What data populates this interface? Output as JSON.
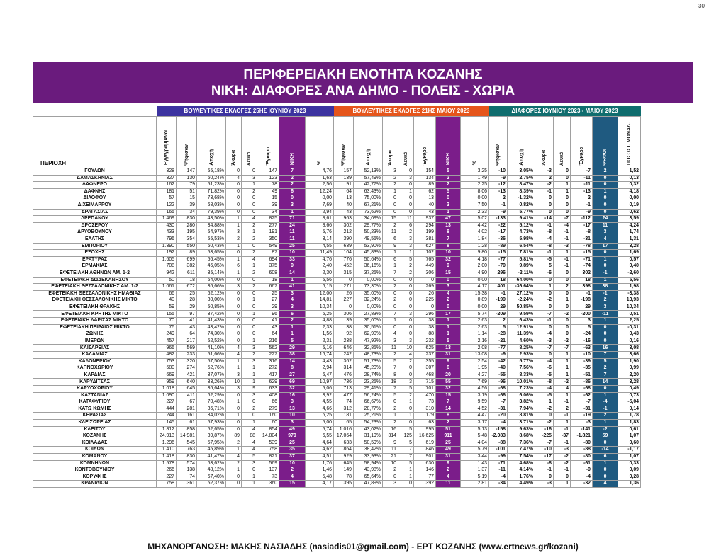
{
  "page": {
    "number": "30",
    "title1": "ΠΕΡΙΦΕΡΕΙΑΚΗ ΕΝΟΤΗΤΑ ΚΟΖΑΝΗΣ",
    "title2": "ΝΙΚΗ: ΔΙΑΦΟΡΕΣ ΑΝΑ ΔΗΜΟ - ΠΟΛΕΙΣ - ΧΩΡΙΑ",
    "footer": "ΜΗΧΑΝΟΡΓΑΝΩΣΗ: ΜΑΚΗΣ ΝΑΣΙΑΔΗΣ (nasiadis01@gmail.com) - ΕΡΤ ΚΟΖΑΝΗΣ (www.ertnews.gr/kozani)"
  },
  "colors": {
    "june": "#3c33a0",
    "may": "#e5551b",
    "diff": "#0f6d6e",
    "party": "#7b1d8a",
    "votes_diff": "#1f5a80"
  },
  "groups": [
    {
      "label": "ΒΟΥΛΕΥΤΙΚΕΣ ΕΚΛΟΓΕΣ 25ΗΣ ΙΟΥΝΙΟΥ 2023"
    },
    {
      "label": "ΒΟΥΛΕΥΤΙΚΕΣ ΕΚΛΟΓΕΣ 21ΗΣ ΜΑΪΟΥ 2023"
    },
    {
      "label": "ΔΙΑΦΟΡΕΣ ΙΟΥΝΙΟΥ 2023 - ΜΑΪΟΥ 2023"
    }
  ],
  "headers": [
    "ΠΕΡΙΟΧΗ",
    "Εγγεγραμμένοι",
    "Ψήφισαν",
    "Αποχή",
    "Άκυρα",
    "Λευκά",
    "Έγκυρα",
    "ΝΙΚΗ",
    "%",
    "Ψήφισαν",
    "Αποχή",
    "Άκυρα",
    "Λευκά",
    "Έγκυρα",
    "ΝΙΚΗ",
    "%",
    "Ψήφισαν",
    "Αποχή",
    "Άκυρα",
    "Λευκά",
    "Έγκυρα",
    "ΨΗΦΟΙ",
    "ΠΟΣΟΣΤ. ΜΟΝΑΔ."
  ],
  "rows": [
    [
      "ΓΟΥΛΩΝ",
      "328",
      "147",
      "55,18%",
      "0",
      "0",
      "147",
      "7",
      "4,76",
      "157",
      "52,13%",
      "3",
      "0",
      "154",
      "5",
      "3,25",
      "-10",
      "3,05%",
      "-3",
      "0",
      "-7",
      "2",
      "1,52"
    ],
    [
      "ΔΑΜΑΣΚΗΝΙΑΣ",
      "327",
      "130",
      "60,24%",
      "4",
      "3",
      "123",
      "2",
      "1,63",
      "139",
      "57,49%",
      "2",
      "3",
      "134",
      "2",
      "1,49",
      "-9",
      "2,75%",
      "2",
      "0",
      "-11",
      "0",
      "0,13"
    ],
    [
      "ΔΑΦΝΕΡΟ",
      "162",
      "79",
      "51,23%",
      "0",
      "1",
      "78",
      "2",
      "2,56",
      "91",
      "42,77%",
      "2",
      "0",
      "89",
      "2",
      "2,25",
      "-12",
      "8,47%",
      "-2",
      "1",
      "-11",
      "0",
      "0,32"
    ],
    [
      "ΔΑΦΝΗΣ",
      "181",
      "51",
      "71,82%",
      "0",
      "2",
      "49",
      "6",
      "12,24",
      "64",
      "63,43%",
      "1",
      "1",
      "62",
      "5",
      "8,06",
      "-13",
      "8,39%",
      "-1",
      "1",
      "-13",
      "1",
      "4,18"
    ],
    [
      "ΔΙΛΟΦΟΥ",
      "57",
      "15",
      "73,68%",
      "0",
      "0",
      "15",
      "0",
      "0,00",
      "13",
      "75,00%",
      "0",
      "0",
      "13",
      "0",
      "0,00",
      "2",
      "-1,32%",
      "0",
      "0",
      "2",
      "0",
      "0,00"
    ],
    [
      "ΔΙΧΕΙΜΑΡΡΟΥ",
      "122",
      "39",
      "68,03%",
      "0",
      "0",
      "39",
      "3",
      "7,69",
      "40",
      "67,21%",
      "0",
      "0",
      "40",
      "3",
      "7,50",
      "-1",
      "0,82%",
      "0",
      "0",
      "-1",
      "0",
      "0,19"
    ],
    [
      "ΔΡΑΓΑΣΙΑΣ",
      "165",
      "34",
      "79,39%",
      "0",
      "0",
      "34",
      "1",
      "2,94",
      "43",
      "73,62%",
      "0",
      "0",
      "43",
      "1",
      "2,33",
      "-9",
      "5,77%",
      "0",
      "0",
      "-9",
      "0",
      "0,62"
    ],
    [
      "ΔΡΕΠΑΝΟΥ",
      "1.469",
      "830",
      "43,50%",
      "1",
      "4",
      "825",
      "71",
      "8,61",
      "963",
      "34,09%",
      "15",
      "11",
      "937",
      "47",
      "5,02",
      "-133",
      "9,41%",
      "-14",
      "-7",
      "-112",
      "24",
      "3,59"
    ],
    [
      "ΔΡΟΣΕΡΟΥ",
      "430",
      "280",
      "34,88%",
      "1",
      "2",
      "277",
      "24",
      "8,66",
      "302",
      "29,77%",
      "2",
      "6",
      "294",
      "13",
      "4,42",
      "-22",
      "5,12%",
      "-1",
      "-4",
      "-17",
      "11",
      "4,24"
    ],
    [
      "ΔΡΥΟΒΟΥΝΟΥ",
      "433",
      "195",
      "54,97%",
      "3",
      "1",
      "191",
      "11",
      "5,76",
      "212",
      "50,23%",
      "11",
      "2",
      "199",
      "8",
      "4,02",
      "-17",
      "4,73%",
      "-8",
      "-1",
      "-8",
      "3",
      "1,74"
    ],
    [
      "ΕΛΑΤΗΣ",
      "796",
      "354",
      "55,53%",
      "2",
      "2",
      "350",
      "11",
      "3,14",
      "390",
      "49,55%",
      "6",
      "3",
      "381",
      "7",
      "1,84",
      "-36",
      "5,98%",
      "-4",
      "-1",
      "-31",
      "4",
      "1,31"
    ],
    [
      "ΕΜΠΟΡΙΟΥ",
      "1.390",
      "550",
      "60,43%",
      "1",
      "0",
      "549",
      "25",
      "4,55",
      "639",
      "53,90%",
      "9",
      "3",
      "627",
      "8",
      "1,28",
      "-89",
      "6,54%",
      "-8",
      "-3",
      "-78",
      "17",
      "3,28"
    ],
    [
      "ΕΞΟΧΗΣ",
      "192",
      "89",
      "53,65%",
      "0",
      "2",
      "87",
      "10",
      "11,49",
      "104",
      "45,83%",
      "1",
      "1",
      "102",
      "10",
      "9,80",
      "-15",
      "7,81%",
      "-1",
      "1",
      "-15",
      "0",
      "1,69"
    ],
    [
      "ΕΡΑΤΥΡΑΣ",
      "1.605",
      "699",
      "56,45%",
      "1",
      "4",
      "694",
      "33",
      "4,76",
      "776",
      "50,64%",
      "6",
      "5",
      "765",
      "32",
      "4,18",
      "-77",
      "5,81%",
      "-5",
      "-1",
      "-71",
      "1",
      "0,57"
    ],
    [
      "ΕΡΜΑΚΙΑΣ",
      "708",
      "382",
      "46,05%",
      "6",
      "1",
      "375",
      "9",
      "2,40",
      "452",
      "36,16%",
      "1",
      "2",
      "449",
      "9",
      "2,00",
      "-70",
      "9,89%",
      "5",
      "-1",
      "-74",
      "0",
      "0,40"
    ],
    [
      "ΕΦΕΤΕΙΑΚΗ ΑΘΗΝΩΝ ΑΜ. 1-2",
      "942",
      "611",
      "35,14%",
      "1",
      "2",
      "608",
      "14",
      "2,30",
      "315",
      "37,25%",
      "7",
      "2",
      "306",
      "15",
      "4,90",
      "296",
      "-2,11%",
      "-6",
      "0",
      "302",
      "-1",
      "-2,60"
    ],
    [
      "ΕΦΕΤΕΙΑΚΗ ΔΩΔΕΚΑΝΗΣΟΥ",
      "50",
      "18",
      "64,00%",
      "0",
      "0",
      "18",
      "1",
      "5,56",
      "0",
      "0,00%",
      "0",
      "0",
      "0",
      "0",
      "0,00",
      "18",
      "64,00%",
      "0",
      "0",
      "18",
      "1",
      "5,56"
    ],
    [
      "ΕΦΕΤΕΙΑΚΗ ΘΕΣΣΑΛΟΝΙΚΗΣ ΑΜ. 1-2",
      "1.061",
      "672",
      "36,66%",
      "3",
      "2",
      "667",
      "41",
      "6,15",
      "271",
      "73,30%",
      "2",
      "0",
      "269",
      "3",
      "4,17",
      "401",
      "-36,64%",
      "1",
      "2",
      "398",
      "38",
      "1,98"
    ],
    [
      "ΕΦΕΤΕΙΑΚΗ ΘΕΣΣΑΛΟΝΙΚΗΣ ΗΜΑΘΙΑΣ",
      "66",
      "25",
      "62,12%",
      "0",
      "0",
      "25",
      "3",
      "12,00",
      "26",
      "35,00%",
      "0",
      "0",
      "26",
      "4",
      "15,38",
      "-1",
      "27,12%",
      "0",
      "0",
      "-1",
      "-1",
      "-3,38"
    ],
    [
      "ΕΦΕΤΕΙΑΚΗ ΘΕΣΣΑΛΟΝΙΚΗΣ ΜΙΚΤΟ",
      "40",
      "28",
      "30,00%",
      "0",
      "1",
      "27",
      "4",
      "14,81",
      "227",
      "32,24%",
      "2",
      "0",
      "225",
      "2",
      "0,89",
      "-199",
      "-2,24%",
      "-2",
      "1",
      "-198",
      "2",
      "13,93"
    ],
    [
      "ΕΦΕΤΕΙΑΚΗ ΘΡΑΚΗΣ",
      "59",
      "29",
      "50,85%",
      "0",
      "0",
      "29",
      "3",
      "10,34",
      "0",
      "0,00%",
      "0",
      "0",
      "0",
      "0",
      "0,00",
      "29",
      "50,85%",
      "0",
      "0",
      "29",
      "3",
      "10,34"
    ],
    [
      "ΕΦΕΤΕΙΑΚΗ ΚΡΗΤΗΣ ΜΙΚΤΟ",
      "155",
      "97",
      "37,42%",
      "0",
      "1",
      "96",
      "6",
      "6,25",
      "306",
      "27,83%",
      "7",
      "3",
      "296",
      "17",
      "5,74",
      "-209",
      "9,59%",
      "-7",
      "-2",
      "-200",
      "-11",
      "0,51"
    ],
    [
      "ΕΦΕΤΕΙΑΚΗ ΛΑΡΙΣΑΣ ΜΙΚΤΟ",
      "70",
      "41",
      "41,43%",
      "0",
      "0",
      "41",
      "2",
      "4,88",
      "39",
      "35,00%",
      "1",
      "0",
      "38",
      "1",
      "2,63",
      "2",
      "6,43%",
      "-1",
      "0",
      "3",
      "1",
      "2,25"
    ],
    [
      "ΕΦΕΤΕΙΑΚΗ ΠΕΙΡΑΙΩΣ ΜΙΚΤΟ",
      "76",
      "43",
      "43,42%",
      "0",
      "0",
      "43",
      "1",
      "2,33",
      "38",
      "30,51%",
      "0",
      "0",
      "38",
      "1",
      "2,63",
      "5",
      "12,91%",
      "0",
      "0",
      "5",
      "0",
      "-0,31"
    ],
    [
      "ΖΩΝΗΣ",
      "249",
      "64",
      "74,30%",
      "0",
      "0",
      "64",
      "1",
      "1,56",
      "92",
      "62,90%",
      "4",
      "0",
      "88",
      "1",
      "1,14",
      "-28",
      "11,39%",
      "-4",
      "0",
      "-24",
      "0",
      "0,43"
    ],
    [
      "ΙΜΕΡΩΝ",
      "457",
      "217",
      "52,52%",
      "0",
      "1",
      "216",
      "5",
      "2,31",
      "238",
      "47,92%",
      "3",
      "3",
      "232",
      "5",
      "2,16",
      "-21",
      "4,60%",
      "-3",
      "-2",
      "-16",
      "0",
      "0,16"
    ],
    [
      "ΚΑΙΣΑΡΕΙΑΣ",
      "966",
      "569",
      "41,10%",
      "4",
      "3",
      "562",
      "29",
      "5,16",
      "646",
      "32,85%",
      "11",
      "10",
      "625",
      "13",
      "2,08",
      "-77",
      "8,25%",
      "-7",
      "-7",
      "-63",
      "16",
      "3,08"
    ],
    [
      "ΚΑΛΑΜΙΑΣ",
      "482",
      "233",
      "51,66%",
      "4",
      "2",
      "227",
      "38",
      "16,74",
      "242",
      "48,73%",
      "2",
      "4",
      "237",
      "31",
      "13,08",
      "-9",
      "2,93%",
      "0",
      "1",
      "-10",
      "7",
      "3,66"
    ],
    [
      "ΚΑΛΟΝΕΡΙΟΥ",
      "753",
      "320",
      "57,50%",
      "1",
      "3",
      "316",
      "14",
      "4,43",
      "362",
      "51,73%",
      "5",
      "2",
      "355",
      "9",
      "2,54",
      "-42",
      "5,77%",
      "-4",
      "1",
      "-39",
      "5",
      "1,90"
    ],
    [
      "ΚΑΠΝΟΧΩΡΙΟΥ",
      "580",
      "274",
      "52,76%",
      "1",
      "1",
      "272",
      "8",
      "2,94",
      "314",
      "45,20%",
      "7",
      "0",
      "307",
      "6",
      "1,95",
      "-40",
      "7,56%",
      "-6",
      "1",
      "-35",
      "2",
      "0,99"
    ],
    [
      "ΚΑΡΔΙΑΣ",
      "669",
      "421",
      "37,07%",
      "3",
      "1",
      "417",
      "27",
      "6,47",
      "476",
      "28,74%",
      "8",
      "0",
      "468",
      "20",
      "4,27",
      "-55",
      "8,33%",
      "-5",
      "1",
      "-51",
      "7",
      "2,20"
    ],
    [
      "ΚΑΡΥΔΙΤΣΑΣ",
      "959",
      "640",
      "33,26%",
      "10",
      "1",
      "629",
      "69",
      "10,97",
      "736",
      "23,25%",
      "18",
      "3",
      "715",
      "55",
      "7,69",
      "-96",
      "10,01%",
      "-8",
      "-2",
      "-86",
      "14",
      "3,28"
    ],
    [
      "ΚΑΡΥΟΧΩΡΙΟΥ",
      "1.018",
      "645",
      "36,64%",
      "3",
      "9",
      "633",
      "32",
      "5,06",
      "713",
      "29,41%",
      "7",
      "5",
      "701",
      "32",
      "4,56",
      "-68",
      "7,23%",
      "-4",
      "4",
      "-68",
      "0",
      "0,49"
    ],
    [
      "ΚΑΣΤΑΝΙΑΣ",
      "1.090",
      "411",
      "62,29%",
      "0",
      "3",
      "408",
      "16",
      "3,92",
      "477",
      "56,24%",
      "5",
      "2",
      "470",
      "15",
      "3,19",
      "-66",
      "6,06%",
      "-5",
      "1",
      "-62",
      "1",
      "0,73"
    ],
    [
      "ΚΑΤΑΦΥΓΙΟΥ",
      "227",
      "67",
      "70,48%",
      "1",
      "0",
      "66",
      "3",
      "4,55",
      "74",
      "66,67%",
      "0",
      "1",
      "73",
      "7",
      "9,59",
      "-7",
      "3,82%",
      "1",
      "-1",
      "-7",
      "-4",
      "-5,04"
    ],
    [
      "ΚΑΤΩ ΚΩΜΗΣ",
      "444",
      "281",
      "36,71%",
      "0",
      "2",
      "279",
      "13",
      "4,66",
      "312",
      "28,77%",
      "2",
      "0",
      "310",
      "14",
      "4,52",
      "-31",
      "7,94%",
      "-2",
      "2",
      "-31",
      "-1",
      "0,14"
    ],
    [
      "ΚΕΡΑΣΙΑΣ",
      "244",
      "161",
      "34,02%",
      "1",
      "0",
      "160",
      "10",
      "6,25",
      "181",
      "25,21%",
      "1",
      "1",
      "179",
      "8",
      "4,47",
      "-20",
      "8,81%",
      "0",
      "-1",
      "-19",
      "2",
      "1,78"
    ],
    [
      "ΚΛΕΙΣΩΡΕΙΑΣ",
      "145",
      "61",
      "57,93%",
      "0",
      "1",
      "60",
      "3",
      "5,00",
      "65",
      "54,23%",
      "2",
      "0",
      "63",
      "2",
      "3,17",
      "-4",
      "3,71%",
      "-2",
      "1",
      "-3",
      "1",
      "1,83"
    ],
    [
      "ΚΛΕΙΤΟΥ",
      "1.812",
      "858",
      "52,65%",
      "0",
      "4",
      "854",
      "49",
      "5,74",
      "1.016",
      "43,02%",
      "16",
      "5",
      "995",
      "51",
      "5,13",
      "-158",
      "9,63%",
      "-16",
      "-1",
      "-141",
      "-2",
      "0,61"
    ],
    [
      "ΚΟΖΑΝΗΣ",
      "24.913",
      "14.981",
      "39,87%",
      "89",
      "88",
      "14.804",
      "970",
      "6,55",
      "17.064",
      "31,19%",
      "314",
      "125",
      "16.625",
      "911",
      "5,48",
      "-2.083",
      "8,68%",
      "-225",
      "-37",
      "-1.821",
      "59",
      "1,07"
    ],
    [
      "ΚΟΙΛΑΔΑΣ",
      "1.296",
      "545",
      "57,95%",
      "2",
      "4",
      "539",
      "25",
      "4,64",
      "633",
      "50,59%",
      "9",
      "5",
      "619",
      "25",
      "4,04",
      "-88",
      "7,36%",
      "-7",
      "-1",
      "-80",
      "0",
      "0,60"
    ],
    [
      "ΚΟΙΛΩΝ",
      "1.410",
      "763",
      "45,89%",
      "1",
      "4",
      "758",
      "35",
      "4,62",
      "864",
      "38,42%",
      "11",
      "7",
      "846",
      "49",
      "5,79",
      "-101",
      "7,47%",
      "-10",
      "-3",
      "-88",
      "-14",
      "-1,17"
    ],
    [
      "ΚΟΜΑΝΟΥ",
      "1.418",
      "830",
      "41,47%",
      "4",
      "5",
      "821",
      "37",
      "4,51",
      "929",
      "33,93%",
      "21",
      "7",
      "901",
      "31",
      "3,44",
      "-99",
      "7,54%",
      "-17",
      "-2",
      "-80",
      "6",
      "1,07"
    ],
    [
      "ΚΟΜΝΗΝΩΝ",
      "1.578",
      "574",
      "63,62%",
      "2",
      "3",
      "569",
      "10",
      "1,76",
      "645",
      "58,94%",
      "10",
      "5",
      "630",
      "9",
      "1,43",
      "-71",
      "4,68%",
      "-8",
      "-2",
      "-61",
      "1",
      "0,33"
    ],
    [
      "ΚΟΝΤΟΒΟΥΝΙΟΥ",
      "266",
      "138",
      "48,12%",
      "1",
      "0",
      "137",
      "2",
      "1,46",
      "149",
      "43,98%",
      "2",
      "1",
      "146",
      "2",
      "1,37",
      "-11",
      "4,14%",
      "-1",
      "-1",
      "-9",
      "0",
      "0,09"
    ],
    [
      "ΚΟΡΥΦΗΣ",
      "227",
      "74",
      "67,40%",
      "0",
      "1",
      "73",
      "4",
      "5,48",
      "78",
      "65,64%",
      "0",
      "1",
      "77",
      "4",
      "5,19",
      "-4",
      "1,76%",
      "0",
      "0",
      "-4",
      "0",
      "0,28"
    ],
    [
      "ΚΡΑΝΙΔΙΩΝ",
      "758",
      "361",
      "52,37%",
      "0",
      "1",
      "360",
      "15",
      "4,17",
      "395",
      "47,89%",
      "3",
      "0",
      "392",
      "11",
      "2,81",
      "-34",
      "4,49%",
      "-3",
      "1",
      "-32",
      "4",
      "1,36"
    ]
  ]
}
